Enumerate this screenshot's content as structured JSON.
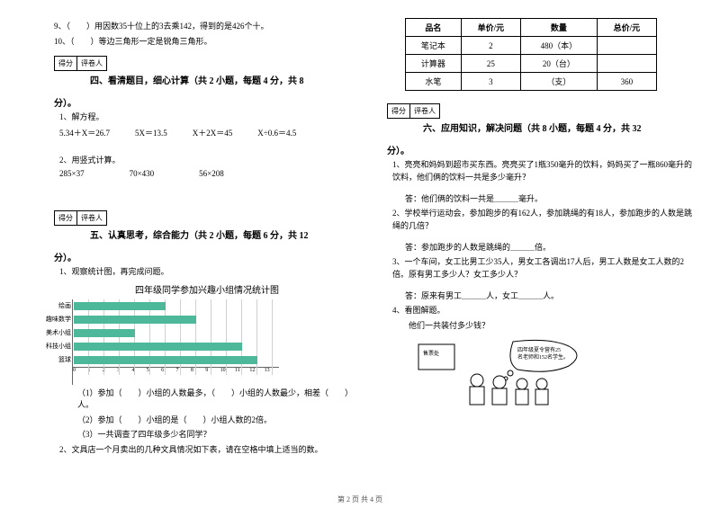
{
  "left": {
    "q9": "9、（　　）用因数35十位上的3去乘142，得到的是426个十。",
    "q10": "10、（　　）等边三角形一定是锐角三角形。",
    "scorebox": {
      "a": "得分",
      "b": "评卷人"
    },
    "sec4_title_a": "四、看清题目，细心计算（共 2 小题，每题 4 分，共 8",
    "sec4_title_b": "分）。",
    "s4_1": "1、解方程。",
    "eq1": "5.34＋X＝26.7",
    "eq2": "5X＝13.5",
    "eq3": "X＋2X＝45",
    "eq4": "X÷0.6＝4.5",
    "s4_2": "2、用竖式计算。",
    "eq5": "285×37",
    "eq6": "70×430",
    "eq7": "56×208",
    "sec5_title_a": "五、认真思考，综合能力（共 2 小题，每题 6 分，共 12",
    "sec5_title_b": "分）。",
    "s5_1": "1、观察统计图，再完成问题。",
    "chart_title": "四年级同学参加兴趣小组情况统计图",
    "chart": {
      "categories": [
        "绘画",
        "趣味数学",
        "美术小组",
        "科技小组",
        "篮球"
      ],
      "values": [
        6,
        8,
        4,
        11,
        12
      ],
      "bar_color": "#4db89a",
      "xmax": 13,
      "xtick_step": 1
    },
    "s5_q1": "（1）参加（　　）小组的人数最多，（　　）小组的人数最少，相差（　　）人。",
    "s5_q2": "（2）参加（　　）小组的是（　　）小组人数的2倍。",
    "s5_q3": "（3）一共调查了四年级多少名同学？",
    "s5_2": "2、文具店一个月卖出的几种文具情况如下表，请在空格中填上适当的数。"
  },
  "right": {
    "table": {
      "headers": [
        "品名",
        "单价/元",
        "数量",
        "总价/元"
      ],
      "rows": [
        [
          "笔记本",
          "2",
          "480（本）",
          ""
        ],
        [
          "计算器",
          "25",
          "20（台）",
          ""
        ],
        [
          "水笔",
          "3",
          "（支）",
          "360"
        ]
      ]
    },
    "scorebox": {
      "a": "得分",
      "b": "评卷人"
    },
    "sec6_title_a": "六、应用知识，解决问题（共 8 小题，每题 4 分，共 32",
    "sec6_title_b": "分）。",
    "s6_1": "1、亮亮和妈妈到超市买东西。亮亮买了1瓶350毫升的饮料，妈妈买了一瓶860毫升的饮料，他们俩的饮料一共是多少毫升？",
    "s6_1a": "答：他们俩的饮料一共是＿＿＿毫升。",
    "s6_2": "2、学校举行运动会，参加跑步的有162人，参加跳绳的有18人，参加跑步的人数是跳绳的几倍？",
    "s6_2a": "答：参加跑步的人数是跳绳的＿＿＿倍。",
    "s6_3": "3、一个车间，女工比男工少35人，男女工各调出17人后，男工人数是女工人数的2倍。原有男工多少人？女工多少人？",
    "s6_3a": "答：原来有男工＿＿＿人，女工＿＿＿人。",
    "s6_4": "4、看图解题。",
    "s6_4q": "　　他们一共装付多少钱？",
    "bubble": "四年级夏令营有25名老师和152名学生。"
  },
  "footer": "第 2 页 共 4 页"
}
